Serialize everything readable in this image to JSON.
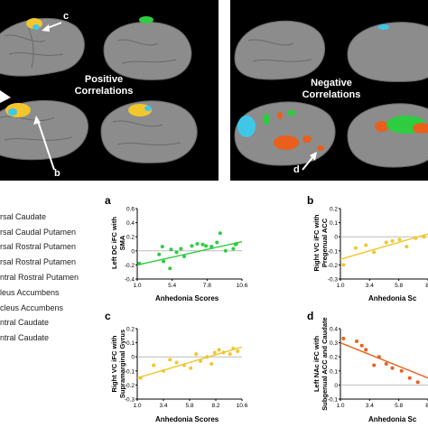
{
  "brain_panels": {
    "positive_label_line1": "Positive",
    "positive_label_line2": "Correlations",
    "negative_label_line1": "Negative",
    "negative_label_line2": "Correlations",
    "callout_c": "c",
    "callout_b": "b",
    "callout_d": "d"
  },
  "legend": {
    "items": [
      "rsal Caudate",
      "rsal Caudal Putamen",
      "rsal Rostral Putamen",
      "rsal Rostral Putamen",
      "ntral Rostral Putamen",
      "leus Accumbens",
      "cleus Accumbens",
      "ntral Caudate",
      "ntral Caudate"
    ]
  },
  "colors": {
    "green": "#2ecc40",
    "yellow": "#f2c62c",
    "orange": "#e8601c",
    "cyan": "#3fc7e8",
    "brain_gray": "#8c8c8c"
  },
  "chart_data": [
    {
      "panel": "a",
      "type": "scatter",
      "ylabel_line1": "Left DC iFC with",
      "ylabel_line2": "SMA",
      "xlabel": "Anhedonia Scores",
      "xticks": [
        "1.0",
        "5.4",
        "7.8",
        "10.6"
      ],
      "yticks": [
        "0.6",
        "0.4",
        "0.2",
        "0",
        "-0.2",
        "-0.4"
      ],
      "xlim": [
        1.0,
        10.6
      ],
      "ylim": [
        -0.4,
        0.6
      ],
      "color": "#2ecc40",
      "points": [
        [
          1.2,
          -0.18
        ],
        [
          3.0,
          -0.05
        ],
        [
          3.3,
          0.06
        ],
        [
          3.4,
          -0.15
        ],
        [
          4.0,
          -0.25
        ],
        [
          4.1,
          0.02
        ],
        [
          4.6,
          -0.02
        ],
        [
          5.0,
          0.03
        ],
        [
          5.3,
          -0.08
        ],
        [
          6.0,
          0.07
        ],
        [
          6.5,
          0.1
        ],
        [
          7.0,
          0.09
        ],
        [
          7.3,
          0.07
        ],
        [
          7.8,
          0.06
        ],
        [
          8.3,
          0.12
        ],
        [
          8.6,
          0.25
        ],
        [
          9.1,
          0.0
        ],
        [
          9.8,
          0.03
        ],
        [
          10.0,
          0.09
        ],
        [
          10.1,
          0.1
        ]
      ],
      "fit": [
        [
          1.0,
          -0.2
        ],
        [
          10.6,
          0.13
        ]
      ]
    },
    {
      "panel": "b",
      "type": "scatter",
      "ylabel_line1": "Right VC iFC with",
      "ylabel_line2": "Pregenual ACC",
      "xlabel": "Anhedonia Sc",
      "xticks": [
        "1.0",
        "3.4",
        "5.8",
        "8."
      ],
      "yticks": [
        "0.2",
        "0.1",
        "0",
        "-0.1",
        "-0.2",
        "-0.3"
      ],
      "xlim": [
        1.0,
        9.6
      ],
      "ylim": [
        -0.3,
        0.2
      ],
      "color": "#f2c62c",
      "points": [
        [
          1.3,
          -0.2
        ],
        [
          2.5,
          -0.08
        ],
        [
          3.5,
          -0.06
        ],
        [
          4.3,
          -0.11
        ],
        [
          5.5,
          -0.04
        ],
        [
          6.1,
          -0.03
        ],
        [
          6.8,
          -0.02
        ],
        [
          7.5,
          -0.07
        ],
        [
          8.4,
          -0.01
        ],
        [
          9.2,
          0.0
        ]
      ],
      "fit": [
        [
          1.0,
          -0.16
        ],
        [
          9.6,
          0.02
        ]
      ]
    },
    {
      "panel": "c",
      "type": "scatter",
      "ylabel_line1": "Right VC iFC with",
      "ylabel_line2": "Supramarginal Gyrus",
      "xlabel": "Anhedonia Scores",
      "xticks": [
        "1.0",
        "3.4",
        "5.8",
        "8.2",
        "10.6"
      ],
      "yticks": [
        "0.2",
        "0.1",
        "0",
        "-0.1",
        "-0.2",
        "-0.3"
      ],
      "xlim": [
        1.0,
        10.6
      ],
      "ylim": [
        -0.3,
        0.2
      ],
      "color": "#f2c62c",
      "points": [
        [
          1.3,
          -0.15
        ],
        [
          2.5,
          -0.06
        ],
        [
          3.4,
          -0.1
        ],
        [
          4.0,
          -0.02
        ],
        [
          4.6,
          -0.04
        ],
        [
          5.3,
          -0.06
        ],
        [
          5.9,
          -0.08
        ],
        [
          6.4,
          0.02
        ],
        [
          6.8,
          -0.03
        ],
        [
          7.4,
          0.0
        ],
        [
          7.8,
          -0.05
        ],
        [
          8.1,
          0.03
        ],
        [
          8.5,
          0.05
        ],
        [
          8.9,
          0.03
        ],
        [
          9.5,
          0.02
        ],
        [
          9.8,
          0.06
        ],
        [
          10.2,
          0.04
        ]
      ],
      "fit": [
        [
          1.0,
          -0.15
        ],
        [
          10.6,
          0.07
        ]
      ]
    },
    {
      "panel": "d",
      "type": "scatter",
      "ylabel_line1": "Left NAc iFC with",
      "ylabel_line2": "Subgenual ACC and Caudate",
      "xlabel": "Anhedonia Sc",
      "xticks": [
        "1.0",
        "3.4",
        "5.8",
        "8."
      ],
      "yticks": [
        "0.4",
        "0.3",
        "0.2",
        "0.1",
        "0",
        "-0.1"
      ],
      "xlim": [
        1.0,
        9.6
      ],
      "ylim": [
        -0.1,
        0.4
      ],
      "color": "#e8601c",
      "points": [
        [
          1.3,
          0.33
        ],
        [
          2.6,
          0.31
        ],
        [
          3.1,
          0.28
        ],
        [
          3.5,
          0.25
        ],
        [
          4.3,
          0.14
        ],
        [
          4.8,
          0.2
        ],
        [
          5.5,
          0.15
        ],
        [
          6.1,
          0.12
        ],
        [
          7.0,
          0.1
        ],
        [
          7.8,
          0.05
        ],
        [
          8.6,
          0.02
        ]
      ],
      "fit": [
        [
          1.0,
          0.3
        ],
        [
          9.6,
          0.05
        ]
      ]
    }
  ]
}
